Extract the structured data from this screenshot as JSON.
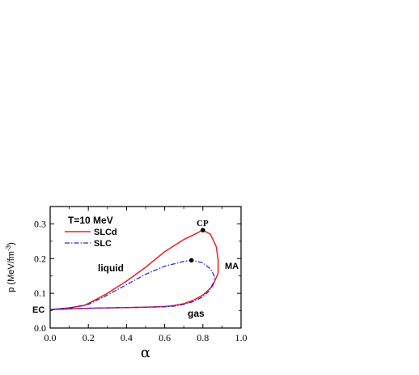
{
  "chart_data": {
    "type": "line",
    "title": "",
    "xlabel": "α",
    "ylabel": "p (MeV/fm",
    "ylabel_sup": "-3",
    "ylabel_close": ")",
    "xlim": [
      0.0,
      1.0
    ],
    "ylim": [
      0.0,
      0.35
    ],
    "x_ticks": [
      0.0,
      0.2,
      0.4,
      0.6,
      0.8,
      1.0
    ],
    "x_tick_labels": [
      "0.0",
      "0.2",
      "0.4",
      "0.6",
      "0.8",
      "1.0"
    ],
    "y_ticks": [
      0.0,
      0.1,
      0.2,
      0.3
    ],
    "y_tick_labels": [
      "0.0",
      "0.1",
      "0.2",
      "0.3"
    ],
    "grid": false,
    "legend": {
      "placement": "top-left",
      "heading": "T=10 MeV",
      "entries": [
        "SLCd",
        "SLC"
      ]
    },
    "series": [
      {
        "name": "SLCd",
        "color": "#e8201e",
        "style": "solid",
        "lower_branch": {
          "x": [
            0.0,
            0.1,
            0.2,
            0.3,
            0.4,
            0.5,
            0.6,
            0.65,
            0.7,
            0.75,
            0.8,
            0.85,
            0.88
          ],
          "y": [
            0.053,
            0.055,
            0.057,
            0.058,
            0.059,
            0.06,
            0.062,
            0.065,
            0.07,
            0.08,
            0.095,
            0.12,
            0.158
          ]
        },
        "upper_branch": {
          "x": [
            0.0,
            0.1,
            0.18,
            0.25,
            0.3,
            0.4,
            0.5,
            0.6,
            0.7,
            0.75,
            0.8,
            0.84,
            0.87,
            0.88,
            0.88
          ],
          "y": [
            0.053,
            0.058,
            0.065,
            0.085,
            0.1,
            0.135,
            0.175,
            0.22,
            0.255,
            0.268,
            0.282,
            0.27,
            0.235,
            0.195,
            0.158
          ]
        },
        "critical_point": {
          "x": 0.8,
          "y": 0.282
        }
      },
      {
        "name": "SLC",
        "color": "#2a2ad8",
        "style": "dashdot",
        "lower_branch": {
          "x": [
            0.0,
            0.1,
            0.2,
            0.3,
            0.4,
            0.5,
            0.6,
            0.65,
            0.7,
            0.75,
            0.8,
            0.83,
            0.86
          ],
          "y": [
            0.053,
            0.055,
            0.057,
            0.058,
            0.059,
            0.06,
            0.061,
            0.063,
            0.068,
            0.076,
            0.09,
            0.105,
            0.135
          ]
        },
        "upper_branch": {
          "x": [
            0.0,
            0.1,
            0.2,
            0.3,
            0.4,
            0.5,
            0.6,
            0.7,
            0.74,
            0.8,
            0.84,
            0.86,
            0.86
          ],
          "y": [
            0.053,
            0.058,
            0.068,
            0.095,
            0.125,
            0.155,
            0.178,
            0.192,
            0.195,
            0.188,
            0.17,
            0.15,
            0.135
          ]
        },
        "critical_point": {
          "x": 0.74,
          "y": 0.195
        }
      }
    ],
    "annotations": [
      {
        "text": "CP",
        "x": 0.8,
        "y": 0.282
      },
      {
        "text": "MA",
        "x": 0.88,
        "y": 0.17
      },
      {
        "text": "liquid",
        "x": 0.3,
        "y": 0.19
      },
      {
        "text": "gas",
        "x": 0.72,
        "y": 0.055
      },
      {
        "text": "EC",
        "x": 0.0,
        "y": 0.055
      }
    ]
  }
}
